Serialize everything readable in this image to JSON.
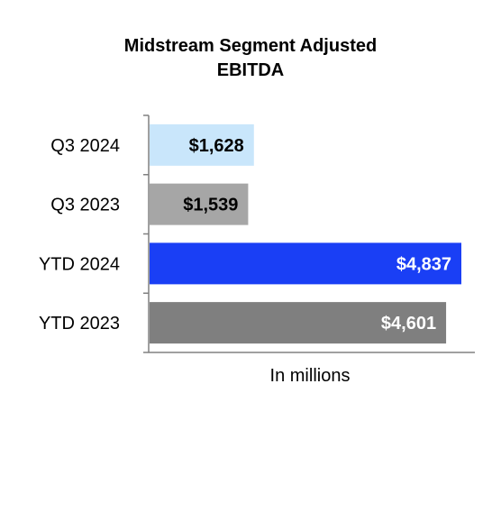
{
  "chart_data": {
    "type": "bar",
    "orientation": "horizontal",
    "title_lines": [
      "Midstream Segment Adjusted",
      "EBITDA"
    ],
    "xlabel": "In millions",
    "ylabel": "",
    "categories": [
      "Q3 2024",
      "Q3 2023",
      "YTD 2024",
      "YTD 2023"
    ],
    "values": [
      1628,
      1539,
      4837,
      4601
    ],
    "value_labels": [
      "$1,628",
      "$1,539",
      "$4,837",
      "$4,601"
    ],
    "bar_colors": [
      "#c9e6fb",
      "#a6a6a6",
      "#1a3ff5",
      "#7f7f7f"
    ],
    "label_colors": [
      "#000000",
      "#000000",
      "#ffffff",
      "#ffffff"
    ],
    "xlim": [
      0,
      4837
    ],
    "grid": false,
    "legend": "none"
  }
}
